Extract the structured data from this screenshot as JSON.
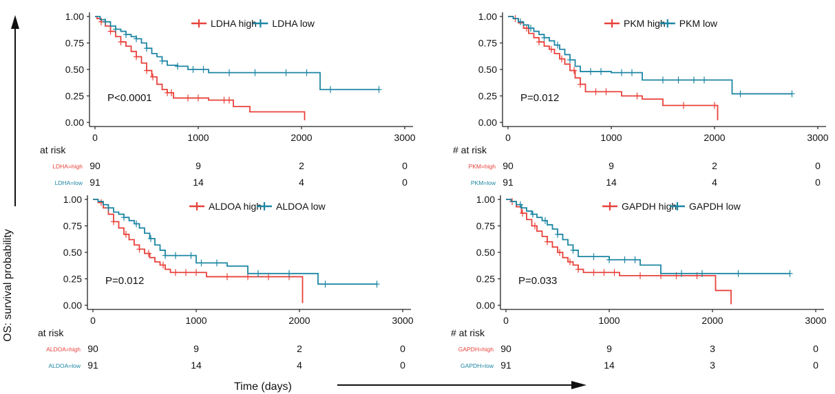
{
  "figure": {
    "y_axis_label": "OS: survival probability",
    "x_axis_label": "Time (days)"
  },
  "colors": {
    "high": "#e8413a",
    "low": "#1c86a3",
    "axis": "#222222"
  },
  "chart_data": [
    {
      "type": "line",
      "title": "",
      "legend": {
        "placement": "top-center",
        "items": [
          "LDHA high",
          "LDHA low"
        ]
      },
      "p_value": "P<0.0001",
      "xlim": [
        0,
        3000
      ],
      "ylim": [
        0,
        1
      ],
      "x_ticks": [
        "0",
        "1000",
        "2000",
        "3000"
      ],
      "y_ticks": [
        "0.00",
        "0.25",
        "0.50",
        "0.75",
        "1.00"
      ],
      "series": [
        {
          "name": "LDHA high",
          "group": "high",
          "x": [
            0,
            20,
            60,
            100,
            150,
            200,
            250,
            300,
            350,
            400,
            450,
            500,
            550,
            600,
            650,
            700,
            760,
            1100,
            1340,
            1500,
            2030,
            2030
          ],
          "y": [
            1.0,
            0.98,
            0.95,
            0.91,
            0.86,
            0.81,
            0.76,
            0.72,
            0.67,
            0.62,
            0.56,
            0.49,
            0.43,
            0.36,
            0.31,
            0.28,
            0.23,
            0.21,
            0.15,
            0.1,
            0.1,
            0.02
          ],
          "censor_x": [
            60,
            150,
            250,
            400,
            500,
            560,
            700,
            740,
            900,
            1000,
            1250,
            1300
          ]
        },
        {
          "name": "LDHA low",
          "group": "low",
          "x": [
            0,
            50,
            100,
            150,
            200,
            250,
            300,
            350,
            400,
            450,
            500,
            550,
            600,
            650,
            700,
            800,
            900,
            1100,
            2180,
            2750
          ],
          "y": [
            1.0,
            0.97,
            0.95,
            0.91,
            0.88,
            0.86,
            0.83,
            0.81,
            0.79,
            0.75,
            0.7,
            0.65,
            0.62,
            0.58,
            0.54,
            0.53,
            0.5,
            0.47,
            0.31,
            0.31
          ],
          "censor_x": [
            100,
            200,
            300,
            400,
            500,
            650,
            800,
            950,
            1050,
            1300,
            1550,
            1850,
            2050,
            2280,
            2750
          ]
        }
      ],
      "risk_table": {
        "header": "at risk",
        "times": [
          0,
          1000,
          2000,
          3000
        ],
        "rows": [
          {
            "label": "LDHA=high",
            "group": "high",
            "values": [
              "90",
              "9",
              "2",
              "0"
            ]
          },
          {
            "label": "LDHA=low",
            "group": "low",
            "values": [
              "91",
              "14",
              "4",
              "0"
            ]
          }
        ]
      }
    },
    {
      "type": "line",
      "title": "",
      "legend": {
        "placement": "top-center",
        "items": [
          "PKM high",
          "PKM low"
        ]
      },
      "p_value": "P=0.012",
      "xlim": [
        0,
        3000
      ],
      "ylim": [
        0,
        1
      ],
      "x_ticks": [
        "0",
        "1000",
        "2000",
        "3000"
      ],
      "y_ticks": [
        "0.00",
        "0.25",
        "0.50",
        "0.75",
        "1.00"
      ],
      "series": [
        {
          "name": "PKM high",
          "group": "high",
          "x": [
            0,
            50,
            100,
            150,
            200,
            250,
            300,
            350,
            400,
            450,
            500,
            550,
            600,
            650,
            700,
            750,
            1100,
            1300,
            1500,
            2030,
            2030
          ],
          "y": [
            1.0,
            0.98,
            0.94,
            0.89,
            0.84,
            0.8,
            0.76,
            0.72,
            0.69,
            0.65,
            0.6,
            0.55,
            0.49,
            0.42,
            0.36,
            0.29,
            0.25,
            0.22,
            0.16,
            0.16,
            0.02
          ],
          "censor_x": [
            70,
            180,
            300,
            420,
            520,
            640,
            700,
            850,
            950,
            1250,
            1700,
            2000
          ]
        },
        {
          "name": "PKM low",
          "group": "low",
          "x": [
            0,
            50,
            100,
            150,
            200,
            250,
            300,
            350,
            400,
            450,
            500,
            550,
            600,
            650,
            700,
            1000,
            1300,
            2170,
            2750
          ],
          "y": [
            1.0,
            0.98,
            0.95,
            0.92,
            0.89,
            0.86,
            0.83,
            0.8,
            0.77,
            0.73,
            0.69,
            0.64,
            0.59,
            0.53,
            0.48,
            0.47,
            0.4,
            0.27,
            0.27
          ],
          "censor_x": [
            120,
            220,
            350,
            480,
            600,
            800,
            900,
            1100,
            1200,
            1500,
            1650,
            1800,
            1900,
            2250,
            2750
          ]
        }
      ],
      "risk_table": {
        "header": "# at risk",
        "times": [
          0,
          1000,
          2000,
          3000
        ],
        "rows": [
          {
            "label": "PKM=high",
            "group": "high",
            "values": [
              "90",
              "9",
              "2",
              "0"
            ]
          },
          {
            "label": "PKM=low",
            "group": "low",
            "values": [
              "91",
              "14",
              "4",
              "0"
            ]
          }
        ]
      }
    },
    {
      "type": "line",
      "title": "",
      "legend": {
        "placement": "top-center",
        "items": [
          "ALDOA high",
          "ALDOA low"
        ]
      },
      "p_value": "P=0.012",
      "xlim": [
        0,
        3000
      ],
      "ylim": [
        0,
        1
      ],
      "x_ticks": [
        "0",
        "1000",
        "2000",
        "3000"
      ],
      "y_ticks": [
        "0.00",
        "0.25",
        "0.50",
        "0.75",
        "1.00"
      ],
      "series": [
        {
          "name": "ALDOA high",
          "group": "high",
          "x": [
            0,
            50,
            100,
            150,
            200,
            250,
            300,
            350,
            400,
            450,
            500,
            550,
            600,
            650,
            700,
            750,
            1100,
            2030,
            2030
          ],
          "y": [
            1.0,
            0.97,
            0.92,
            0.86,
            0.79,
            0.73,
            0.67,
            0.62,
            0.57,
            0.53,
            0.49,
            0.45,
            0.41,
            0.38,
            0.34,
            0.31,
            0.27,
            0.27,
            0.02
          ],
          "censor_x": [
            80,
            200,
            320,
            450,
            540,
            680,
            800,
            900,
            1000,
            1300,
            1500,
            1700,
            1900
          ]
        },
        {
          "name": "ALDOA low",
          "group": "low",
          "x": [
            0,
            50,
            100,
            150,
            200,
            250,
            300,
            350,
            400,
            450,
            500,
            550,
            600,
            650,
            700,
            1000,
            1300,
            1500,
            2180,
            2750
          ],
          "y": [
            1.0,
            0.98,
            0.95,
            0.92,
            0.88,
            0.86,
            0.83,
            0.8,
            0.77,
            0.73,
            0.68,
            0.63,
            0.57,
            0.52,
            0.47,
            0.4,
            0.37,
            0.3,
            0.2,
            0.2
          ],
          "censor_x": [
            150,
            300,
            420,
            560,
            700,
            800,
            950,
            1050,
            1200,
            1600,
            1900,
            2250,
            2750
          ]
        }
      ],
      "risk_table": {
        "header": "at risk",
        "times": [
          0,
          1000,
          2000,
          3000
        ],
        "rows": [
          {
            "label": "ALDOA=high",
            "group": "high",
            "values": [
              "90",
              "9",
              "2",
              "0"
            ]
          },
          {
            "label": "ALDOA=low",
            "group": "low",
            "values": [
              "91",
              "14",
              "4",
              "0"
            ]
          }
        ]
      }
    },
    {
      "type": "line",
      "title": "",
      "legend": {
        "placement": "top-center",
        "items": [
          "GAPDH high",
          "GAPDH low"
        ]
      },
      "p_value": "P=0.033",
      "xlim": [
        0,
        3000
      ],
      "ylim": [
        0,
        1
      ],
      "x_ticks": [
        "0",
        "1000",
        "2000",
        "3000"
      ],
      "y_ticks": [
        "0.00",
        "0.25",
        "0.50",
        "0.75",
        "1.00"
      ],
      "series": [
        {
          "name": "GAPDH high",
          "group": "high",
          "x": [
            0,
            50,
            100,
            150,
            200,
            250,
            300,
            350,
            400,
            450,
            500,
            550,
            600,
            650,
            700,
            750,
            1100,
            2030,
            2180,
            2180
          ],
          "y": [
            1.0,
            0.98,
            0.93,
            0.87,
            0.81,
            0.75,
            0.7,
            0.65,
            0.6,
            0.55,
            0.5,
            0.45,
            0.41,
            0.38,
            0.34,
            0.31,
            0.28,
            0.14,
            0.14,
            0.01
          ],
          "censor_x": [
            60,
            160,
            280,
            400,
            520,
            620,
            700,
            850,
            950,
            1050,
            1300,
            1500,
            1650,
            1850
          ]
        },
        {
          "name": "GAPDH low",
          "group": "low",
          "x": [
            0,
            50,
            100,
            150,
            200,
            250,
            300,
            350,
            400,
            450,
            500,
            550,
            600,
            650,
            700,
            1000,
            1300,
            1500,
            2750
          ],
          "y": [
            1.0,
            0.98,
            0.95,
            0.92,
            0.89,
            0.86,
            0.83,
            0.8,
            0.76,
            0.72,
            0.67,
            0.62,
            0.57,
            0.52,
            0.46,
            0.43,
            0.38,
            0.3,
            0.3
          ],
          "censor_x": [
            140,
            260,
            380,
            500,
            650,
            850,
            1000,
            1150,
            1250,
            1700,
            1900,
            2250,
            2750
          ]
        }
      ],
      "risk_table": {
        "header": "# at risk",
        "times": [
          0,
          1000,
          2000,
          3000
        ],
        "rows": [
          {
            "label": "GAPDH=high",
            "group": "high",
            "values": [
              "90",
              "9",
              "3",
              "0"
            ]
          },
          {
            "label": "GAPDH=low",
            "group": "low",
            "values": [
              "91",
              "14",
              "3",
              "0"
            ]
          }
        ]
      }
    }
  ]
}
